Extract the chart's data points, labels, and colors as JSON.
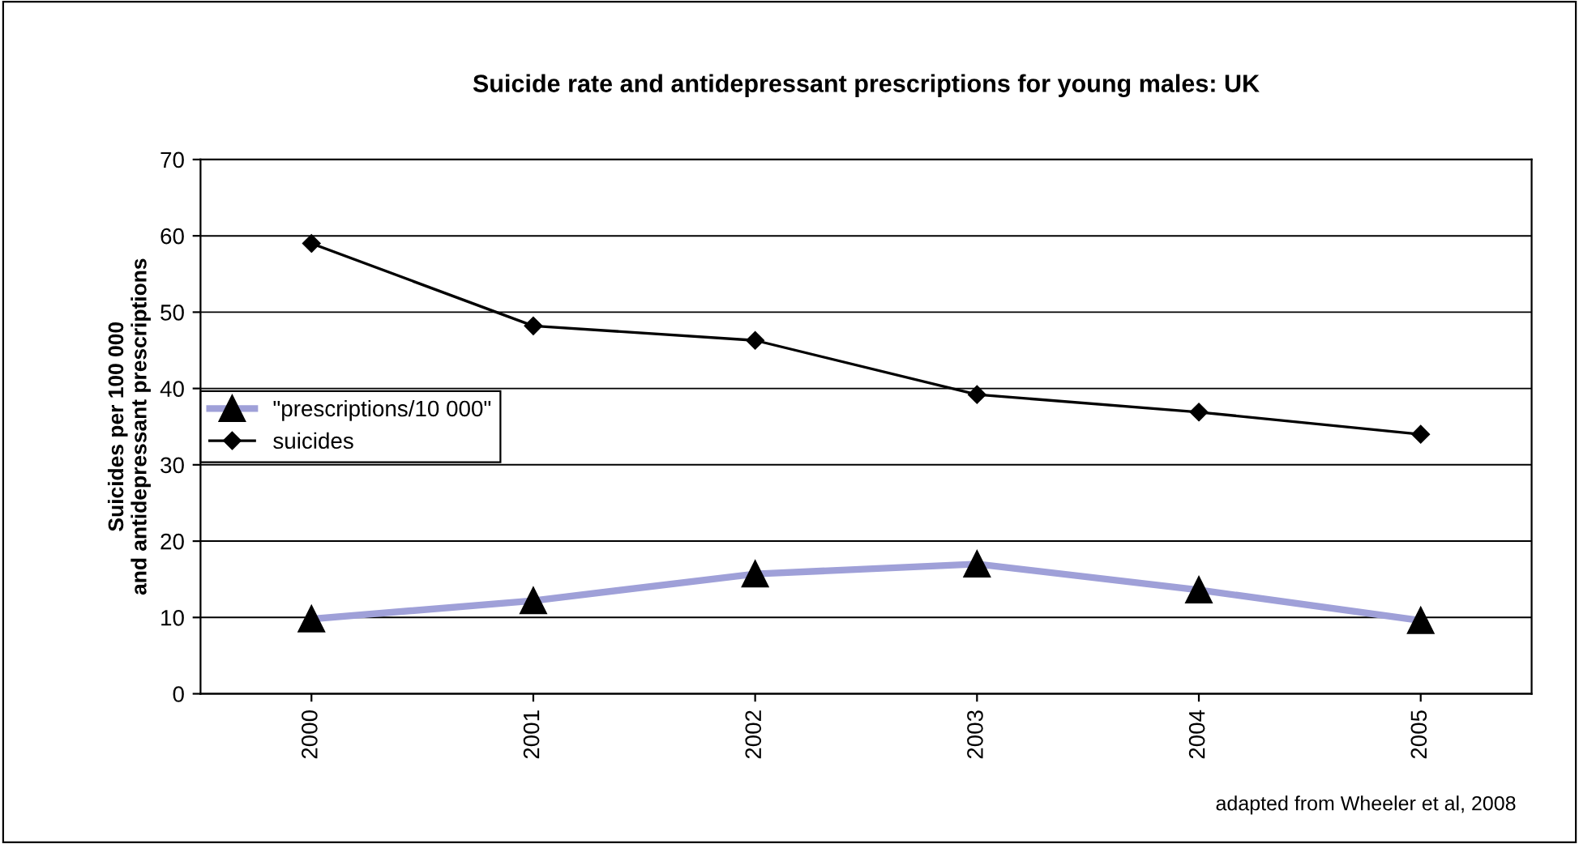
{
  "chart_data": {
    "type": "line",
    "title": "Suicide rate and antidepressant prescriptions for young males: UK",
    "ylabel": "Suicides per 100 000\nand antidepressant prescriptions",
    "categories": [
      "2000",
      "2001",
      "2002",
      "2003",
      "2004",
      "2005"
    ],
    "series": [
      {
        "name": "\"prescriptions/10 000\"",
        "color": "#9fa0d8",
        "marker": "triangle",
        "values": [
          9.8,
          12.2,
          15.7,
          17,
          13.6,
          9.6
        ]
      },
      {
        "name": "suicides",
        "color": "#000000",
        "marker": "diamond",
        "values": [
          59,
          48.2,
          46.3,
          39.2,
          36.9,
          34
        ]
      }
    ],
    "ylim": [
      0,
      70
    ],
    "yticks": [
      0,
      10,
      20,
      30,
      40,
      50,
      60,
      70
    ],
    "grid": "y",
    "legend": "center left",
    "annotations": [
      "adapted from Wheeler et al, 2008"
    ]
  }
}
